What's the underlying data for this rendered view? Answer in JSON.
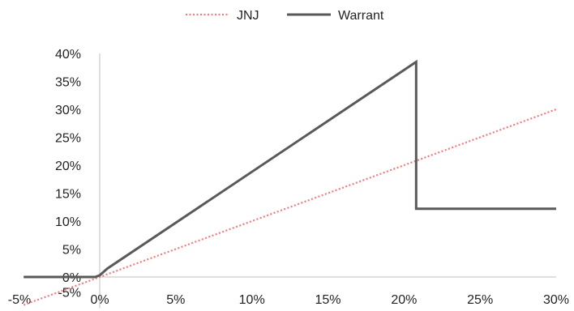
{
  "chart_data": {
    "type": "line",
    "title": "",
    "xlabel": "",
    "ylabel": "",
    "xlim": [
      -5,
      30
    ],
    "ylim": [
      -5,
      40
    ],
    "x_ticks": [
      -5,
      0,
      5,
      10,
      15,
      20,
      25,
      30
    ],
    "y_ticks": [
      -5,
      0,
      5,
      10,
      15,
      20,
      25,
      30,
      35,
      40
    ],
    "x_tick_labels": [
      "-5%",
      "0%",
      "5%",
      "10%",
      "15%",
      "20%",
      "25%",
      "30%"
    ],
    "y_tick_labels": [
      "-5%",
      "0%",
      "5%",
      "10%",
      "15%",
      "20%",
      "25%",
      "30%",
      "35%",
      "40%"
    ],
    "grid": false,
    "legend_position": "top-center",
    "series": [
      {
        "name": "JNJ",
        "style": "dotted",
        "color": "#f07c80",
        "x": [
          -5,
          30
        ],
        "y": [
          -5,
          30
        ]
      },
      {
        "name": "Warrant",
        "style": "solid",
        "color": "#595959",
        "x": [
          -5,
          -0.3,
          0,
          0.5,
          20.8,
          20.8,
          30
        ],
        "y": [
          0,
          0,
          0.3,
          1.5,
          38.5,
          12.2,
          12.2
        ]
      }
    ]
  }
}
